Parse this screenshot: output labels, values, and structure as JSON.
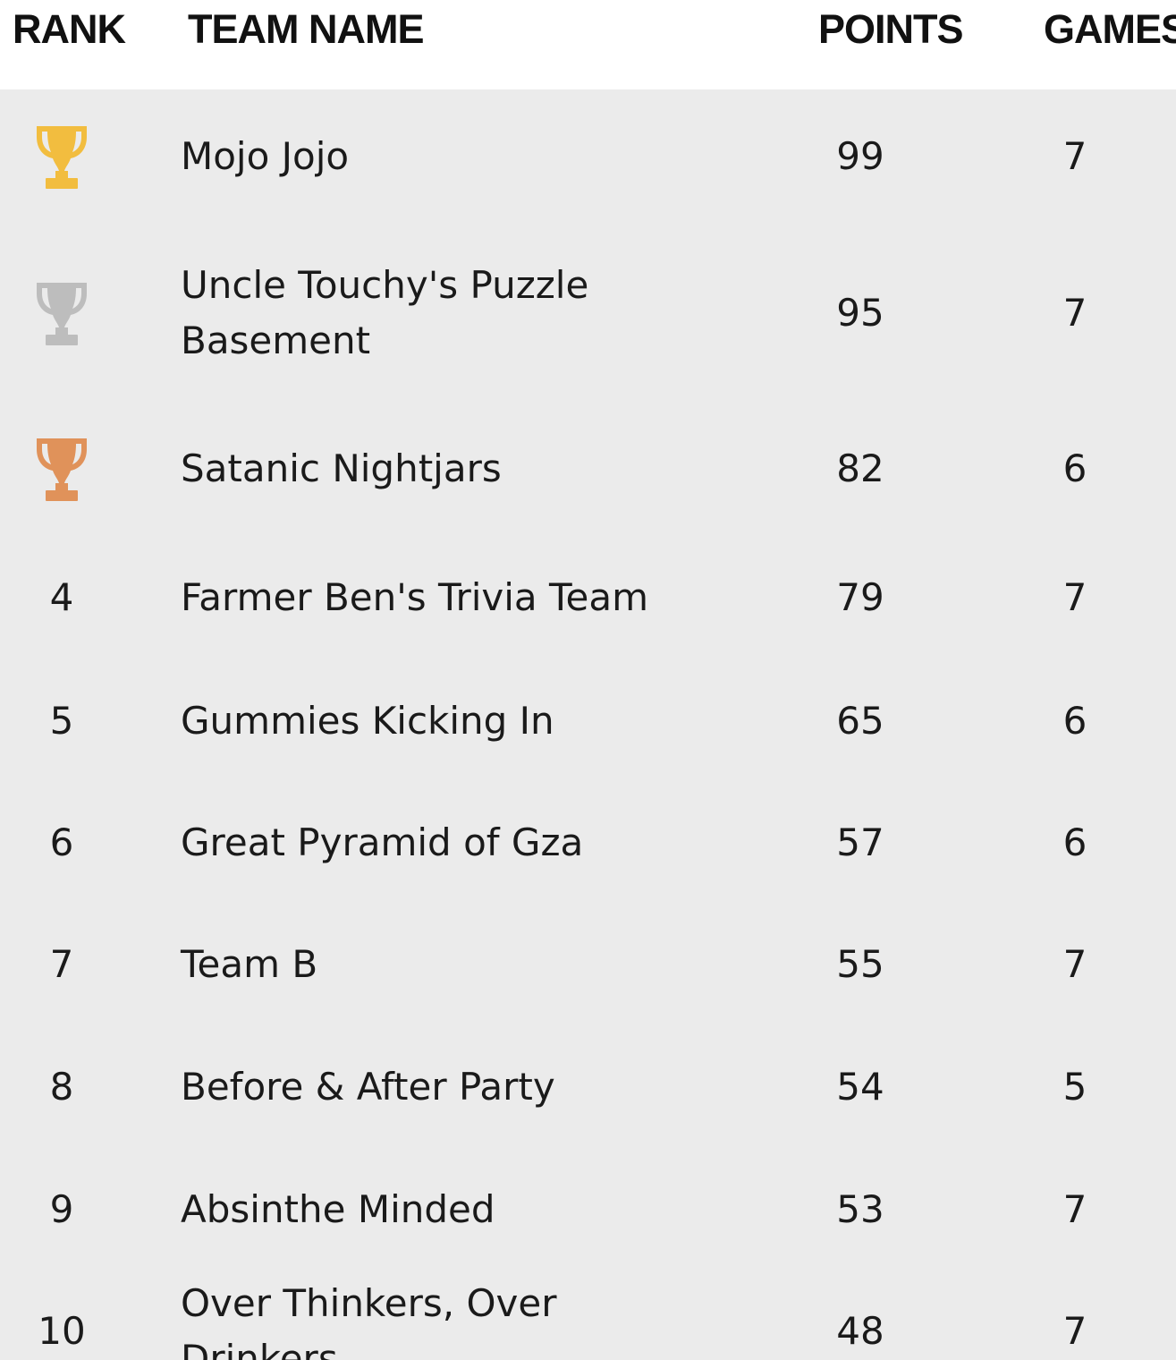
{
  "header": {
    "rank": "RANK",
    "team_name": "TEAM NAME",
    "points": "POINTS",
    "games": "GAMES"
  },
  "colors": {
    "gold": "#F2BD3F",
    "silver": "#BDBDBD",
    "bronze": "#E0925A",
    "row_background": "#EBEBEB"
  },
  "rows": [
    {
      "rank": "",
      "trophy": "gold-trophy-icon",
      "team": "Mojo Jojo",
      "points": "99",
      "games": "7"
    },
    {
      "rank": "",
      "trophy": "silver-trophy-icon",
      "team": "Uncle Touchy's Puzzle Basement",
      "points": "95",
      "games": "7"
    },
    {
      "rank": "",
      "trophy": "bronze-trophy-icon",
      "team": "Satanic Nightjars",
      "points": "82",
      "games": "6"
    },
    {
      "rank": "4",
      "team": "Farmer Ben's Trivia Team",
      "points": "79",
      "games": "7"
    },
    {
      "rank": "5",
      "team": "Gummies Kicking In",
      "points": "65",
      "games": "6"
    },
    {
      "rank": "6",
      "team": "Great Pyramid of Gza",
      "points": "57",
      "games": "6"
    },
    {
      "rank": "7",
      "team": "Team B",
      "points": "55",
      "games": "7"
    },
    {
      "rank": "8",
      "team": "Before & After Party",
      "points": "54",
      "games": "5"
    },
    {
      "rank": "9",
      "team": "Absinthe Minded",
      "points": "53",
      "games": "7"
    },
    {
      "rank": "10",
      "team": "Over Thinkers, Over Drinkers",
      "points": "48",
      "games": "7"
    }
  ]
}
